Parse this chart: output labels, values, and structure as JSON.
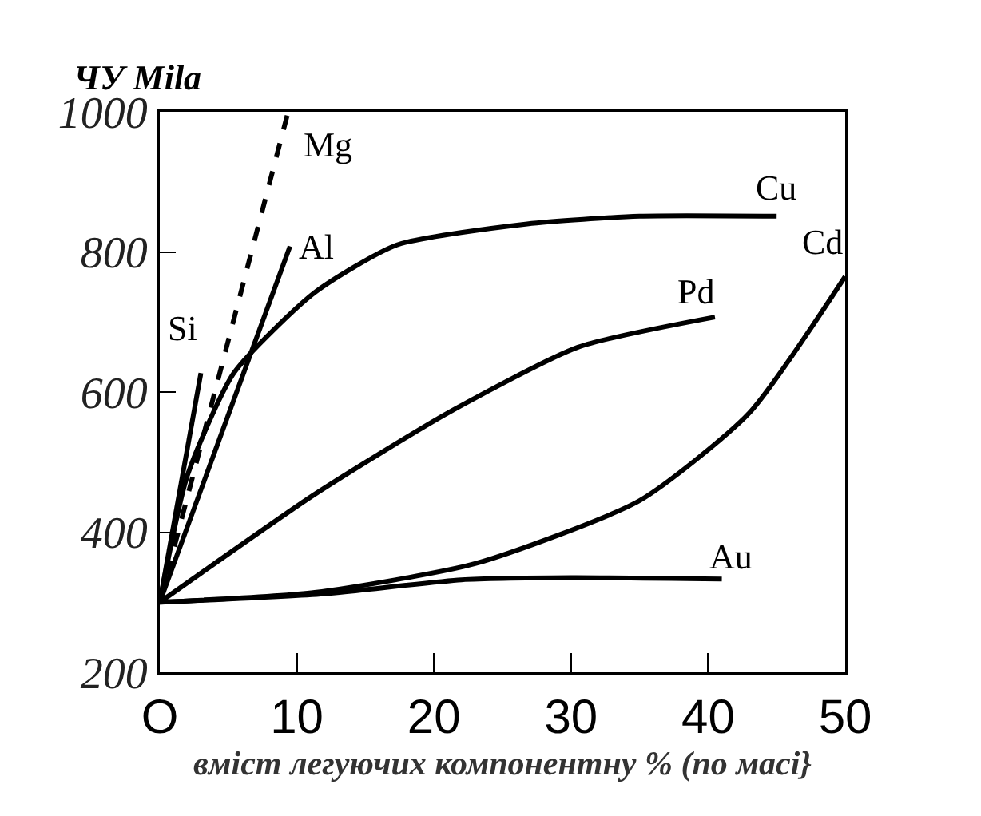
{
  "chart_data": {
    "type": "line",
    "ylabel": "ЧУ Mila",
    "xlabel": "вміст легуючих компонентну % (по масі}",
    "xlim": [
      0,
      50
    ],
    "xticks": [
      {
        "value": 0,
        "label": "O"
      },
      10,
      20,
      30,
      40,
      50
    ],
    "ylim": [
      200,
      1000
    ],
    "yticks": [
      200,
      400,
      600,
      800,
      1000
    ],
    "series": [
      {
        "name": "Si",
        "color": "#000000",
        "x": [
          0,
          3
        ],
        "values": [
          300,
          627
        ]
      },
      {
        "name": "Mg",
        "color": "#000000",
        "x": [
          0,
          9.3
        ],
        "values": [
          300,
          995
        ],
        "line_style": "dashed"
      },
      {
        "name": "Al",
        "color": "#000000",
        "x": [
          0,
          9.5
        ],
        "values": [
          300,
          808
        ]
      },
      {
        "name": "Cu",
        "color": "#000000",
        "x": [
          0,
          2,
          5.4,
          11.3,
          17.3,
          26.8,
          35,
          45
        ],
        "values": [
          300,
          480,
          627,
          742,
          810,
          840,
          851,
          851
        ]
      },
      {
        "name": "Pd",
        "color": "#000000",
        "x": [
          0,
          11.3,
          21,
          30.5,
          40.5
        ],
        "values": [
          300,
          454,
          570,
          664,
          707
        ]
      },
      {
        "name": "Cd",
        "color": "#000000",
        "x": [
          0,
          11.3,
          23,
          35,
          43,
          50
        ],
        "values": [
          300,
          314,
          355,
          445,
          570,
          765
        ]
      },
      {
        "name": "Au",
        "color": "#000000",
        "x": [
          0,
          12,
          22,
          30,
          41
        ],
        "values": [
          300,
          312,
          332,
          335,
          333
        ]
      }
    ]
  }
}
